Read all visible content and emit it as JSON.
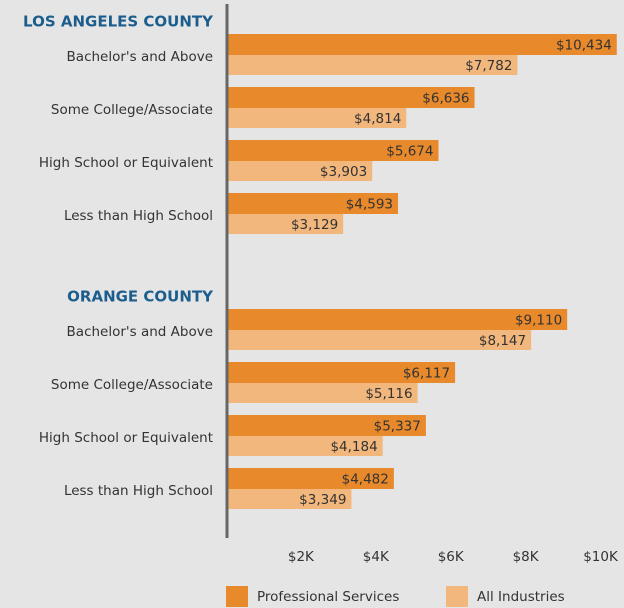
{
  "chart_data": {
    "type": "bar",
    "orientation": "horizontal",
    "legend": [
      {
        "name": "Professional Services",
        "color": "#e8892b"
      },
      {
        "name": "All Industries",
        "color": "#f2b77c"
      }
    ],
    "groups": [
      {
        "title": "LOS ANGELES COUNTY",
        "categories": [
          "Bachelor's and Above",
          "Some College/Associate",
          "High School or Equivalent",
          "Less than High School"
        ],
        "series": [
          {
            "values": [
              10434,
              6636,
              5674,
              4593
            ],
            "value_labels": [
              "$10,434",
              "$6,636",
              "$5,674",
              "$4,593"
            ]
          },
          {
            "values": [
              7782,
              4814,
              3903,
              3129
            ],
            "value_labels": [
              "$7,782",
              "$4,814",
              "$3,903",
              "$3,129"
            ]
          }
        ]
      },
      {
        "title": "ORANGE COUNTY",
        "categories": [
          "Bachelor's and Above",
          "Some College/Associate",
          "High School or Equivalent",
          "Less than High School"
        ],
        "series": [
          {
            "values": [
              9110,
              6117,
              5337,
              4482
            ],
            "value_labels": [
              "$9,110",
              "$6,117",
              "$5,337",
              "$4,482"
            ]
          },
          {
            "values": [
              8147,
              5116,
              4184,
              3349
            ],
            "value_labels": [
              "$8,147",
              "$5,116",
              "$4,184",
              "$3,349"
            ]
          }
        ]
      }
    ],
    "xlim": [
      0,
      10600
    ],
    "xticks": [
      {
        "value": 2000,
        "label": "$2K"
      },
      {
        "value": 4000,
        "label": "$4K"
      },
      {
        "value": 6000,
        "label": "$6K"
      },
      {
        "value": 8000,
        "label": "$8K"
      },
      {
        "value": 10000,
        "label": "$10K"
      }
    ]
  }
}
